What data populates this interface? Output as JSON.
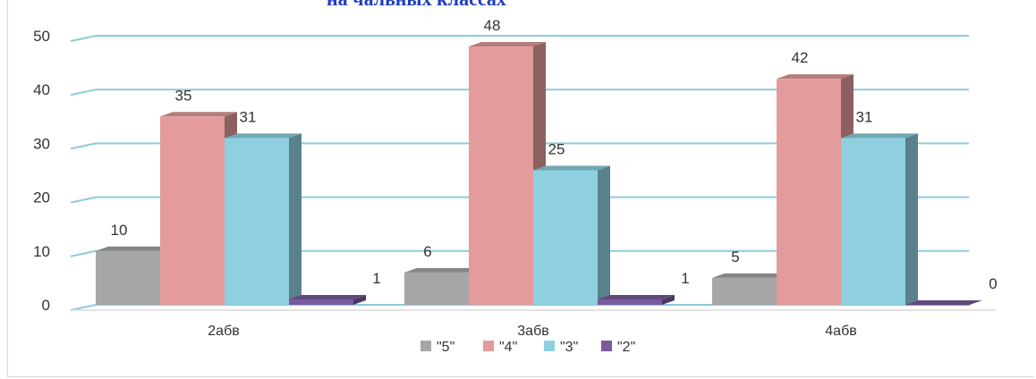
{
  "chart_data": {
    "type": "bar",
    "title": "на чальных классах",
    "categories": [
      "2абв",
      "3абв",
      "4абв"
    ],
    "series": [
      {
        "name": "\"5\"",
        "values": [
          10,
          6,
          5
        ],
        "color": "#a6a6a6"
      },
      {
        "name": "\"4\"",
        "values": [
          35,
          48,
          42
        ],
        "color": "#e49b9b"
      },
      {
        "name": "\"3\"",
        "values": [
          31,
          25,
          31
        ],
        "color": "#8fd0e0"
      },
      {
        "name": "\"2\"",
        "values": [
          1,
          1,
          0
        ],
        "color": "#7a5a9e"
      }
    ],
    "ylim": [
      0,
      50
    ],
    "yticks": [
      0,
      10,
      20,
      30,
      40,
      50
    ],
    "grid": true,
    "legend_position": "bottom",
    "gridline_color": "#8ccbdc"
  }
}
